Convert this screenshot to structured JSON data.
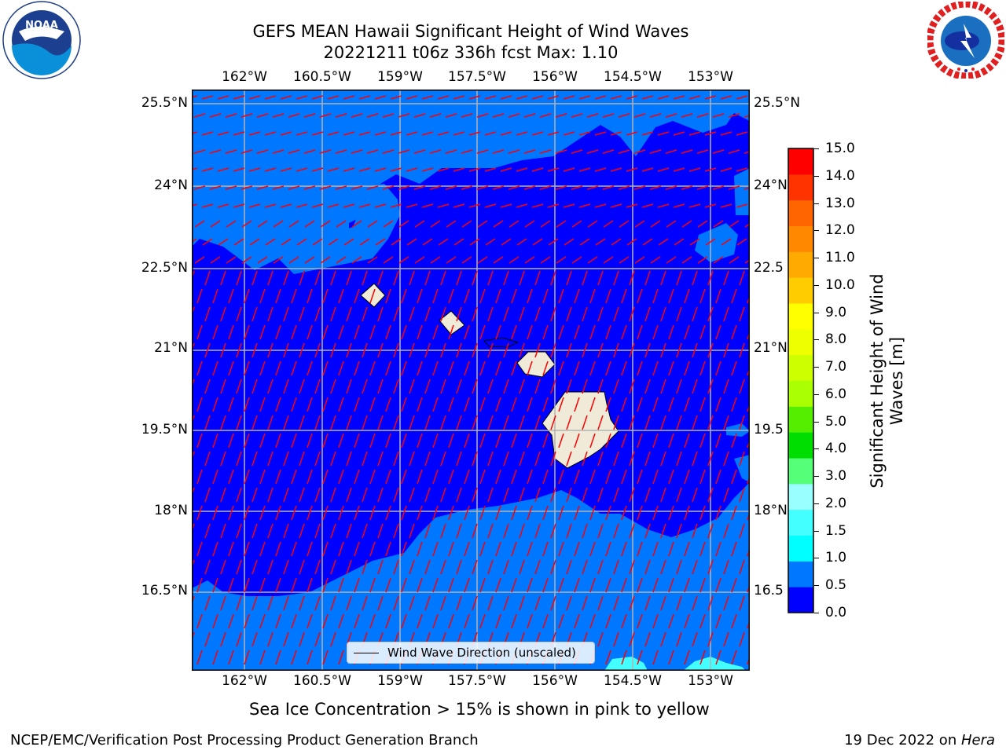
{
  "title": {
    "line1": "GEFS MEAN Hawaii Significant Height of Wind Waves",
    "line2": "20221211 t06z 336h fcst   Max: 1.10"
  },
  "logos": {
    "noaa": {
      "icon": "noaa-logo",
      "text": "NOAA",
      "ring_text": "NATIONAL OCEANIC AND ATMOSPHERIC ADMINISTRATION · U.S. DEPARTMENT OF COMMERCE"
    },
    "nws": {
      "icon": "nws-logo",
      "ring_text": "NATIONAL WEATHER SERVICE"
    }
  },
  "map": {
    "lon_labels": [
      "162°W",
      "160.5°W",
      "159°W",
      "157.5°W",
      "156°W",
      "154.5°W",
      "153°W"
    ],
    "lat_labels_left": [
      "25.5°N",
      "24°N",
      "22.5°N",
      "21°N",
      "19.5°N",
      "18°N",
      "16.5°N"
    ],
    "lat_labels_right": [
      "25.5°N",
      "24°N",
      "22.5",
      "21°N",
      "19.5",
      "18°N",
      "16.5"
    ],
    "legend_label": "Wind Wave Direction (unscaled)",
    "colors": {
      "deep": "#0000ff",
      "shallow": "#0077ff",
      "cyan": "#00ffff",
      "land": "#efebd8",
      "arrow": "#ff0000",
      "grid": "#b4b4b4"
    }
  },
  "colorbar": {
    "title": "Significant Height of Wind Waves [m]",
    "tick_labels": [
      "0.0",
      "0.5",
      "1.0",
      "1.5",
      "2.0",
      "3.0",
      "4.0",
      "5.0",
      "6.0",
      "7.0",
      "8.0",
      "9.0",
      "10.0",
      "11.0",
      "12.0",
      "13.0",
      "14.0",
      "15.0"
    ],
    "colors": [
      "#0000ff",
      "#0077ff",
      "#00ffff",
      "#44ffff",
      "#99ffff",
      "#55ff77",
      "#00dd00",
      "#55ee00",
      "#aaff00",
      "#ccff00",
      "#eeff00",
      "#ffff00",
      "#ffcc00",
      "#ffaa00",
      "#ff8800",
      "#ff6600",
      "#ff3300",
      "#ff0000"
    ]
  },
  "note": "Sea Ice Concentration > 15% is shown in pink to yellow",
  "footer": {
    "left": "NCEP/EMC/Verification Post Processing Product Generation Branch",
    "date": "19 Dec 2022 on ",
    "machine": "Hera"
  }
}
